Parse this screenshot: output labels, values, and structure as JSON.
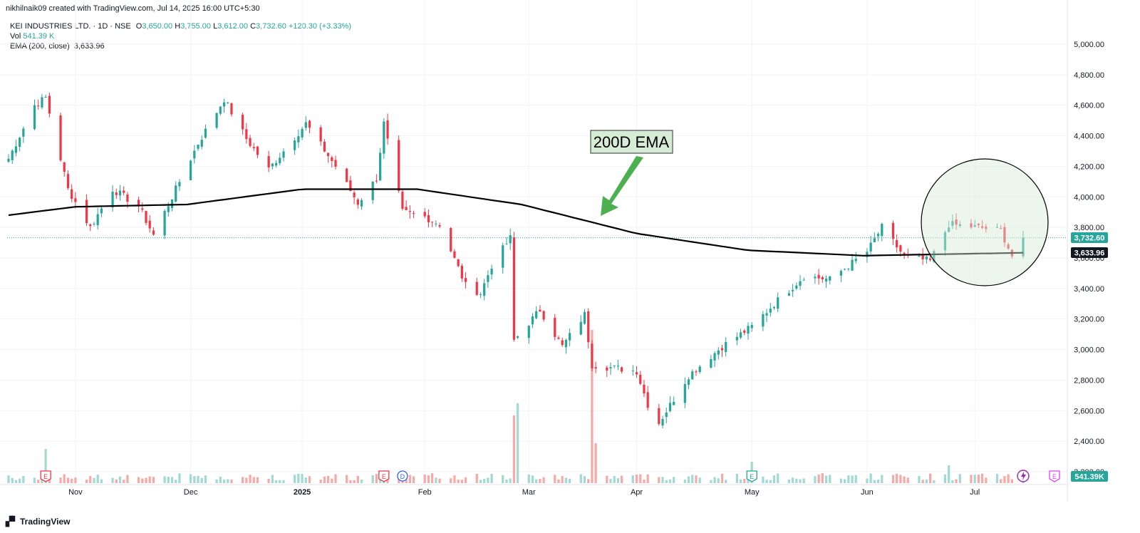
{
  "header": {
    "creator": "nikhilnaik09 created with TradingView.com, Jul 14, 2025 16:00 UTC+5:30"
  },
  "legend": {
    "symbol": "KEI INDUSTRIES LTD. · 1D · NSE",
    "o_label": "O",
    "o": "3,650.00",
    "h_label": "H",
    "h": "3,755.00",
    "l_label": "L",
    "l": "3,612.00",
    "c_label": "C",
    "c": "3,732.60",
    "change": "+120.30 (+3.33%)",
    "vol_label": "Vol",
    "vol": "541.39 K",
    "ema_label": "EMA (200, close)",
    "ema": "3,633.96"
  },
  "annotation": {
    "label": "200D EMA"
  },
  "footer": {
    "brand": "TradingView",
    "logo_icon": "tradingview-logo-icon"
  },
  "colors": {
    "up": "#26a69a",
    "down": "#f23645",
    "up_volume": "#a3d9d3",
    "down_volume": "#f7a9a7",
    "ema": "#000000",
    "annotation_fill": "#d6ecd6",
    "arrow": "#4caf50"
  },
  "chart_data": {
    "type": "candlestick",
    "symbol": "KEI INDUSTRIES LTD.",
    "interval": "1D",
    "exchange": "NSE",
    "ylim": [
      2200,
      5100
    ],
    "y_ticks": [
      "5,000.00",
      "4,800.00",
      "4,600.00",
      "4,400.00",
      "4,200.00",
      "4,000.00",
      "3,800.00",
      "3,600.00",
      "3,400.00",
      "3,200.00",
      "3,000.00",
      "2,800.00",
      "2,600.00",
      "2,400.00",
      "2,200.00"
    ],
    "x_ticks": [
      "Nov",
      "Dec",
      "2025",
      "Feb",
      "Mar",
      "Apr",
      "May",
      "Jun",
      "Jul"
    ],
    "price_label": "3,732.60",
    "ema_price_label": "3,633.96",
    "volume_label": "541.39K",
    "grid": true,
    "events": [
      "E",
      "E",
      "D",
      "E",
      "E"
    ],
    "close_keypoints": [
      {
        "date": "Oct 14",
        "close": 4250
      },
      {
        "date": "Oct 21",
        "close": 4600
      },
      {
        "date": "Oct 24",
        "close": 4650
      },
      {
        "date": "Oct 30",
        "close": 4050
      },
      {
        "date": "Nov 05",
        "close": 3800
      },
      {
        "date": "Nov 11",
        "close": 4050
      },
      {
        "date": "Nov 18",
        "close": 3940
      },
      {
        "date": "Nov 22",
        "close": 3750
      },
      {
        "date": "Nov 28",
        "close": 4050
      },
      {
        "date": "Dec 04",
        "close": 4350
      },
      {
        "date": "Dec 11",
        "close": 4640
      },
      {
        "date": "Dec 17",
        "close": 4380
      },
      {
        "date": "Dec 23",
        "close": 4180
      },
      {
        "date": "Jan 02",
        "close": 4480
      },
      {
        "date": "Jan 10",
        "close": 4200
      },
      {
        "date": "Jan 16",
        "close": 3960
      },
      {
        "date": "Jan 21",
        "close": 4120
      },
      {
        "date": "Jan 23",
        "close": 4480
      },
      {
        "date": "Jan 28",
        "close": 3900
      },
      {
        "date": "Feb 03",
        "close": 3870
      },
      {
        "date": "Feb 07",
        "close": 3820
      },
      {
        "date": "Feb 14",
        "close": 3420
      },
      {
        "date": "Feb 18",
        "close": 3370
      },
      {
        "date": "Feb 21",
        "close": 3550
      },
      {
        "date": "Feb 26",
        "close": 3730
      },
      {
        "date": "Feb 27",
        "close": 3060
      },
      {
        "date": "Mar 06",
        "close": 3260
      },
      {
        "date": "Mar 12",
        "close": 3020
      },
      {
        "date": "Mar 18",
        "close": 3230
      },
      {
        "date": "Mar 20",
        "close": 2900
      },
      {
        "date": "Apr 01",
        "close": 2860
      },
      {
        "date": "Apr 04",
        "close": 2640
      },
      {
        "date": "Apr 07",
        "close": 2520
      },
      {
        "date": "Apr 15",
        "close": 2830
      },
      {
        "date": "Apr 24",
        "close": 3020
      },
      {
        "date": "May 02",
        "close": 3150
      },
      {
        "date": "May 08",
        "close": 3300
      },
      {
        "date": "May 16",
        "close": 3480
      },
      {
        "date": "May 23",
        "close": 3460
      },
      {
        "date": "Jun 02",
        "close": 3640
      },
      {
        "date": "Jun 06",
        "close": 3800
      },
      {
        "date": "Jun 12",
        "close": 3610
      },
      {
        "date": "Jun 19",
        "close": 3580
      },
      {
        "date": "Jun 24",
        "close": 3820
      },
      {
        "date": "Jul 02",
        "close": 3800
      },
      {
        "date": "Jul 08",
        "close": 3780
      },
      {
        "date": "Jul 11",
        "close": 3612
      },
      {
        "date": "Jul 14",
        "close": 3732.6
      }
    ],
    "ema_keypoints": [
      {
        "date": "Oct 14",
        "value": 3880
      },
      {
        "date": "Nov 01",
        "value": 3935
      },
      {
        "date": "Dec 01",
        "value": 3950
      },
      {
        "date": "Jan 01",
        "value": 4050
      },
      {
        "date": "Feb 01",
        "value": 4050
      },
      {
        "date": "Mar 01",
        "value": 3950
      },
      {
        "date": "Apr 01",
        "value": 3760
      },
      {
        "date": "May 01",
        "value": 3650
      },
      {
        "date": "Jun 01",
        "value": 3615
      },
      {
        "date": "Jul 14",
        "value": 3633.96
      }
    ]
  }
}
